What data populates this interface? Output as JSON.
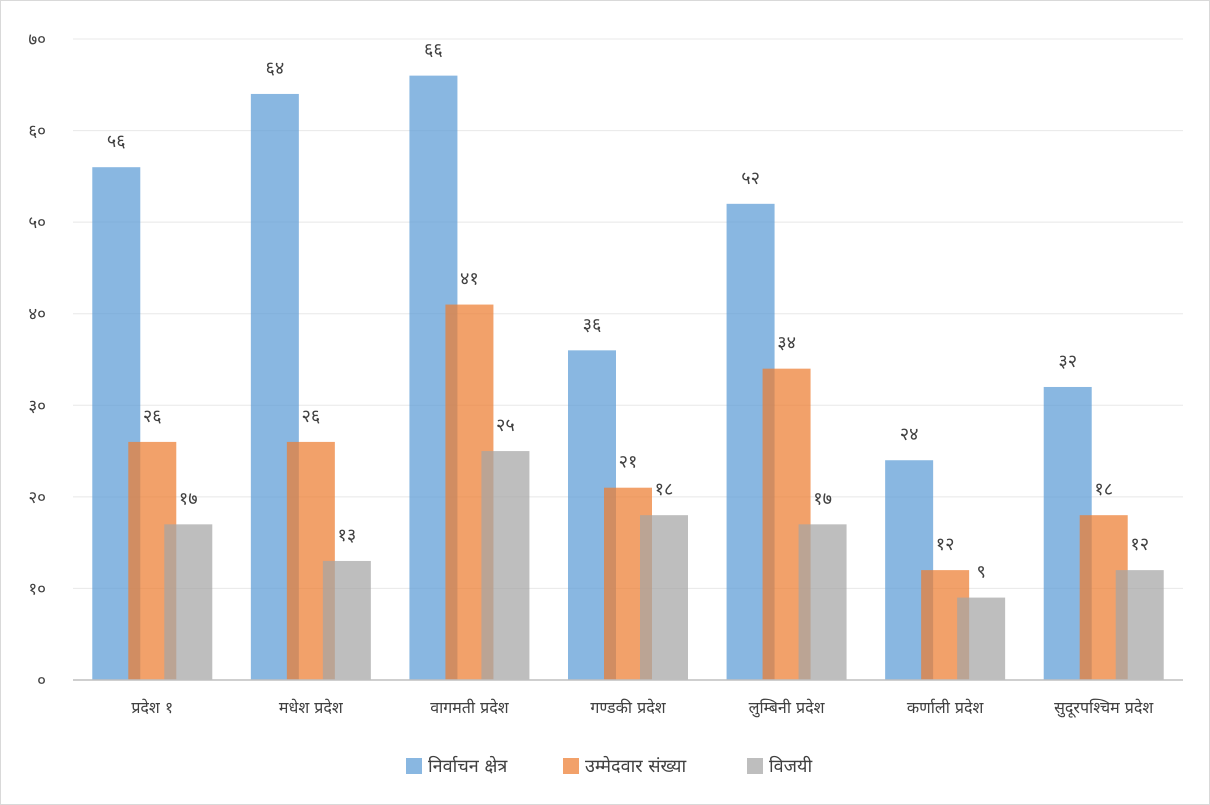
{
  "chart_data": {
    "type": "bar",
    "title": "",
    "xlabel": "",
    "ylabel": "",
    "ylim": [
      0,
      70
    ],
    "y_ticks": [
      {
        "value": 0,
        "label": "०"
      },
      {
        "value": 10,
        "label": "१०"
      },
      {
        "value": 20,
        "label": "२०"
      },
      {
        "value": 30,
        "label": "३०"
      },
      {
        "value": 40,
        "label": "४०"
      },
      {
        "value": 50,
        "label": "५०"
      },
      {
        "value": 60,
        "label": "६०"
      },
      {
        "value": 70,
        "label": "७०"
      }
    ],
    "grid": true,
    "legend_position": "bottom",
    "categories": [
      "प्रदेश १",
      "मधेश प्रदेश",
      "वागमती प्रदेश",
      "गण्डकी प्रदेश",
      "लुम्बिनी प्रदेश",
      "कर्णाली प्रदेश",
      "सुदूरपश्चिम प्रदेश"
    ],
    "series": [
      {
        "name": "निर्वाचन क्षेत्र",
        "color": "#5b9bd5",
        "values": [
          56,
          64,
          66,
          36,
          52,
          24,
          32
        ],
        "labels": [
          "५६",
          "६४",
          "६६",
          "३६",
          "५२",
          "२४",
          "३२"
        ]
      },
      {
        "name": "उम्मेदवार संख्या",
        "color": "#ed7d31",
        "values": [
          26,
          26,
          41,
          21,
          34,
          12,
          18
        ],
        "labels": [
          "२६",
          "२६",
          "४१",
          "२१",
          "३४",
          "१२",
          "१८"
        ]
      },
      {
        "name": "विजयी",
        "color": "#a5a5a5",
        "values": [
          17,
          13,
          25,
          18,
          17,
          9,
          12
        ],
        "labels": [
          "१७",
          "१३",
          "२५",
          "१८",
          "१७",
          "९",
          "१२"
        ]
      }
    ]
  }
}
